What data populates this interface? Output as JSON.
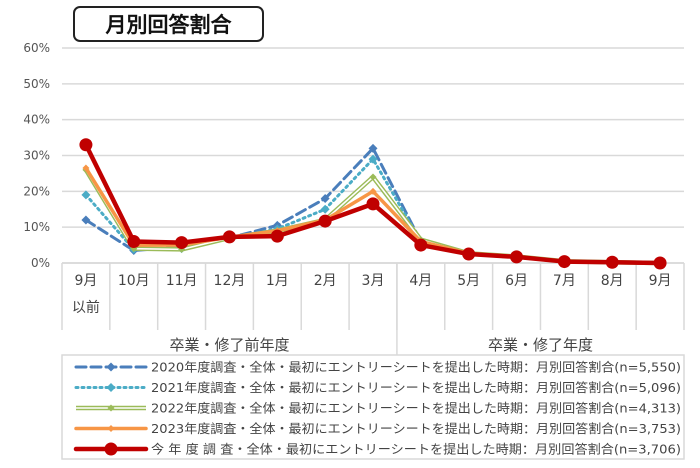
{
  "chart_data": {
    "type": "line",
    "title": "月別回答割合",
    "categories": [
      "9月\n以前",
      "10月",
      "11月",
      "12月",
      "1月",
      "2月",
      "3月",
      "4月",
      "5月",
      "6月",
      "7月",
      "8月",
      "9月"
    ],
    "groups": [
      {
        "label": "卒業・修了前年度",
        "span": 7
      },
      {
        "label": "卒業・修了年度",
        "span": 6
      }
    ],
    "ylim": [
      0,
      60
    ],
    "yticks": [
      "0%",
      "10%",
      "20%",
      "30%",
      "40%",
      "50%",
      "60%"
    ],
    "grid": true,
    "legend_position": "bottom",
    "series": [
      {
        "name": "2020年度調査・全体・最初にエントリーシートを提出した時期：月別回答割合(n=5,550)",
        "color": "#4a7ebb",
        "style": "dashed",
        "values": [
          12,
          3.5,
          4.5,
          7,
          10.5,
          18,
          32,
          6,
          2.5,
          1.5,
          0.5,
          0.2,
          0
        ]
      },
      {
        "name": "2021年度調査・全体・最初にエントリーシートを提出した時期：月別回答割合(n=5,096)",
        "color": "#4bacc6",
        "style": "dotted",
        "values": [
          19,
          3.8,
          4,
          7,
          9.5,
          15,
          29,
          6,
          2.5,
          1.5,
          0.5,
          0.2,
          0
        ]
      },
      {
        "name": "2022年度調査・全体・最初にエントリーシートを提出した時期：月別回答割合(n=4,313)",
        "color": "#9bbb59",
        "style": "double",
        "values": [
          26,
          4,
          3.8,
          7,
          9,
          12,
          24,
          6.5,
          2.7,
          1.8,
          0.5,
          0.2,
          0
        ]
      },
      {
        "name": "2023年度調査・全体・最初にエントリーシートを提出した時期：月別回答割合(n=3,753)",
        "color": "#f79646",
        "style": "solid",
        "values": [
          26.5,
          5,
          5,
          7.2,
          9,
          12,
          20,
          6,
          2.7,
          1.8,
          0.5,
          0.2,
          0
        ]
      },
      {
        "name": "今 年 度 調 査・全体・最初にエントリーシートを提出した時期：月別回答割合(n=3,706)",
        "color": "#c00000",
        "style": "bold",
        "values": [
          33,
          6,
          5.7,
          7.3,
          7.5,
          11.7,
          16.5,
          5,
          2.5,
          1.7,
          0.4,
          0.2,
          0
        ]
      }
    ]
  }
}
